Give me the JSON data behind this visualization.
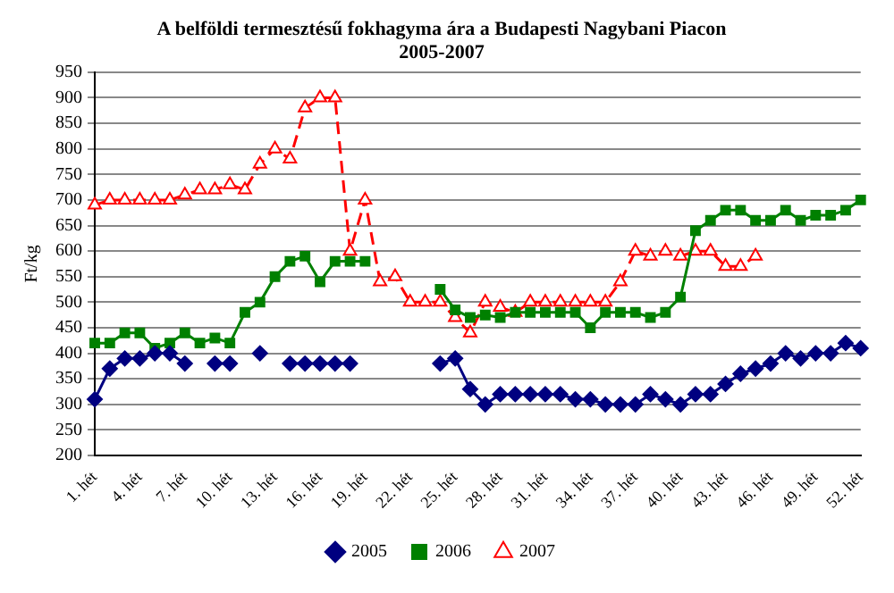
{
  "chart_data": {
    "type": "line",
    "title": "A belföldi termesztésű fokhagyma ára a Budapesti Nagybani Piacon",
    "subtitle": "2005-2007",
    "ylabel": "Ft/kg",
    "categories": [
      "1. hét",
      null,
      null,
      "4. hét",
      null,
      null,
      "7. hét",
      null,
      null,
      "10. hét",
      null,
      null,
      "13. hét",
      null,
      null,
      "16. hét",
      null,
      null,
      "19. hét",
      null,
      null,
      "22. hét",
      null,
      null,
      "25. hét",
      null,
      null,
      "28. hét",
      null,
      null,
      "31. hét",
      null,
      null,
      "34. hét",
      null,
      null,
      "37. hét",
      null,
      null,
      "40. hét",
      null,
      null,
      "43. hét",
      null,
      null,
      "46. hét",
      null,
      null,
      "49. hét",
      null,
      null,
      "52. hét"
    ],
    "series": [
      {
        "name": "2005",
        "color": "#000080",
        "marker": "diamond",
        "line_style": "solid",
        "values": [
          310,
          370,
          390,
          390,
          400,
          400,
          380,
          null,
          380,
          380,
          null,
          400,
          null,
          380,
          380,
          380,
          380,
          380,
          null,
          null,
          null,
          null,
          null,
          380,
          390,
          330,
          300,
          320,
          320,
          320,
          320,
          320,
          310,
          310,
          300,
          300,
          300,
          320,
          310,
          300,
          320,
          320,
          340,
          360,
          370,
          380,
          400,
          390,
          400,
          400,
          420,
          410
        ]
      },
      {
        "name": "2006",
        "color": "#008000",
        "marker": "square",
        "line_style": "solid",
        "values": [
          420,
          420,
          440,
          440,
          410,
          420,
          440,
          420,
          430,
          420,
          480,
          500,
          550,
          580,
          590,
          540,
          580,
          580,
          580,
          null,
          null,
          null,
          null,
          525,
          485,
          470,
          475,
          470,
          480,
          480,
          480,
          480,
          480,
          450,
          480,
          480,
          480,
          470,
          480,
          510,
          640,
          660,
          680,
          680,
          660,
          660,
          680,
          660,
          670,
          670,
          680,
          700
        ]
      },
      {
        "name": "2007",
        "color": "#ff0000",
        "marker": "triangle",
        "line_style": "dashed",
        "values": [
          690,
          700,
          700,
          700,
          700,
          700,
          710,
          720,
          720,
          730,
          720,
          770,
          800,
          780,
          880,
          900,
          900,
          600,
          700,
          540,
          550,
          500,
          500,
          500,
          470,
          440,
          500,
          490,
          480,
          500,
          500,
          500,
          500,
          500,
          500,
          540,
          600,
          590,
          600,
          590,
          600,
          600,
          570,
          570,
          590,
          null,
          null,
          null,
          null,
          null,
          null,
          null
        ]
      }
    ],
    "ylim": [
      200,
      950
    ],
    "yticks": [
      200,
      250,
      300,
      350,
      400,
      450,
      500,
      550,
      600,
      650,
      700,
      750,
      800,
      850,
      900,
      950
    ],
    "grid": "y",
    "legend": "bottom"
  }
}
